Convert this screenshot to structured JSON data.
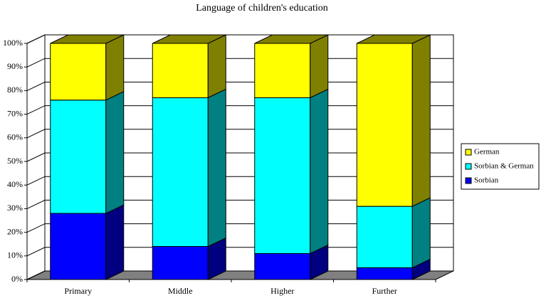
{
  "chart_data": {
    "type": "stacked_bar_3d",
    "title": "Language of children's education",
    "categories": [
      "Primary",
      "Middle",
      "Higher",
      "Further"
    ],
    "series": [
      {
        "name": "Sorbian",
        "color": "#0000ff",
        "values": [
          28,
          14,
          11,
          5
        ]
      },
      {
        "name": "Sorbian & German",
        "color": "#00ffff",
        "values": [
          48,
          63,
          66,
          26
        ]
      },
      {
        "name": "German",
        "color": "#ffff00",
        "values": [
          24,
          23,
          23,
          69
        ]
      }
    ],
    "ylim": [
      0,
      100
    ],
    "yticks": [
      {
        "value": 0,
        "label": "0%"
      },
      {
        "value": 10,
        "label": "10%"
      },
      {
        "value": 20,
        "label": "20%"
      },
      {
        "value": 30,
        "label": "30%"
      },
      {
        "value": 40,
        "label": "40%"
      },
      {
        "value": 50,
        "label": "50%"
      },
      {
        "value": 60,
        "label": "60%"
      },
      {
        "value": 70,
        "label": "70%"
      },
      {
        "value": 80,
        "label": "80%"
      },
      {
        "value": 90,
        "label": "90%"
      },
      {
        "value": 100,
        "label": "100%"
      }
    ],
    "grid": true,
    "legend": "right"
  }
}
